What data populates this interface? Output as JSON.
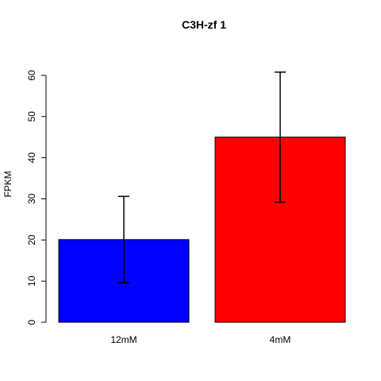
{
  "chart_data": {
    "type": "bar",
    "title": "C3H-zf 1",
    "xlabel": "",
    "ylabel": "FPKM",
    "categories": [
      "12mM",
      "4mM"
    ],
    "values": [
      20.1,
      45.0
    ],
    "error_low": [
      9.6,
      29.2
    ],
    "error_high": [
      30.6,
      60.8
    ],
    "colors": [
      "#0000ff",
      "#ff0000"
    ],
    "ylim": [
      0,
      60
    ],
    "yticks": [
      0,
      10,
      20,
      30,
      40,
      50,
      60
    ],
    "grid": false,
    "legend": "none"
  }
}
